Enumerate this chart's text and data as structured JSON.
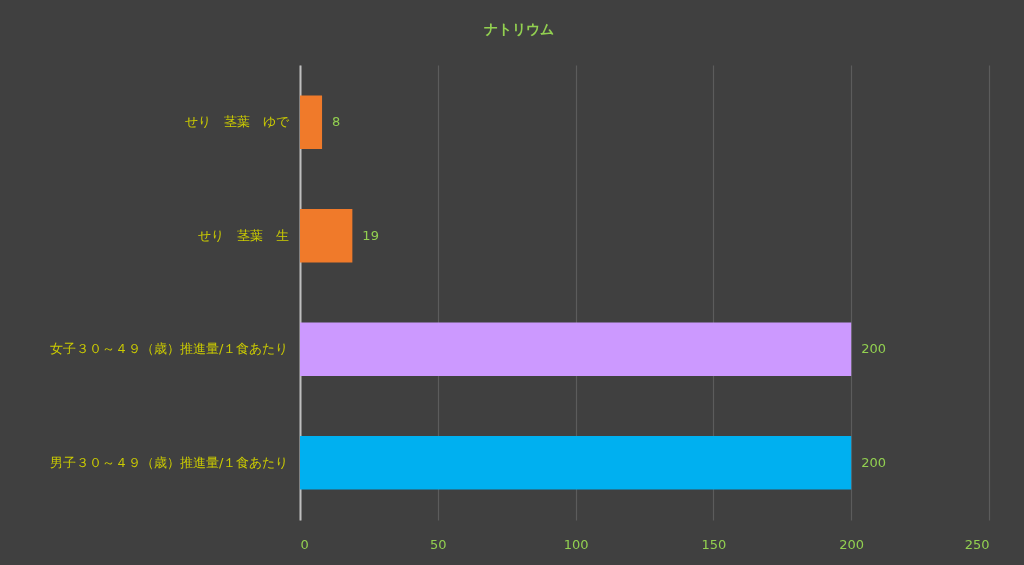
{
  "chart_data": {
    "type": "bar",
    "orientation": "horizontal",
    "title": "ナトリウム",
    "categories": [
      "せり　茎葉　ゆで",
      "せり　茎葉　生",
      "女子３０～４９（歳）推進量/１食あたり",
      "男子３０～４９（歳）推進量/１食あたり"
    ],
    "values": [
      8,
      19,
      200,
      200
    ],
    "colors": [
      "#f07a2a",
      "#f07a2a",
      "#cc99ff",
      "#00b0f0"
    ],
    "xlim": [
      0,
      250
    ],
    "xticks": [
      0,
      50,
      100,
      150,
      200,
      250
    ],
    "grid": "x",
    "data_labels": true
  }
}
